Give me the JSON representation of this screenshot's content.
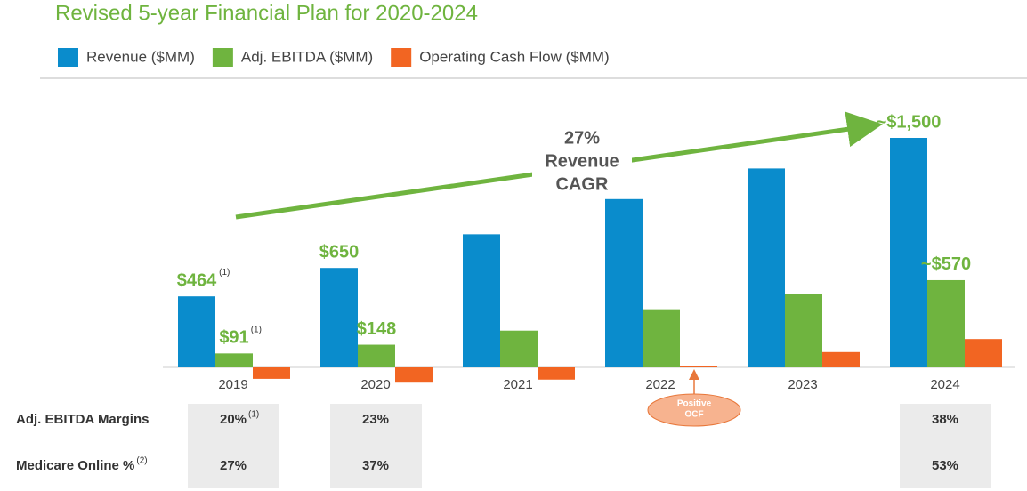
{
  "chart_data": {
    "type": "bar",
    "title": "Revised 5-year Financial Plan for 2020-2024",
    "categories": [
      "2019",
      "2020",
      "2021",
      "2022",
      "2023",
      "2024"
    ],
    "series": [
      {
        "name": "Revenue ($MM)",
        "color": "#0a8ccc",
        "values": [
          464,
          650,
          870,
          1100,
          1300,
          1500
        ],
        "value_labels": [
          "$464",
          "$650",
          null,
          null,
          null,
          "~$1,500"
        ],
        "value_notes": [
          "(1)",
          null,
          null,
          null,
          null,
          null
        ]
      },
      {
        "name": "Adj. EBITDA ($MM)",
        "color": "#6fb43f",
        "values": [
          91,
          148,
          240,
          380,
          480,
          570
        ],
        "value_labels": [
          "$91",
          "$148",
          null,
          null,
          null,
          "~$570"
        ],
        "value_notes": [
          "(1)",
          null,
          null,
          null,
          null,
          null
        ]
      },
      {
        "name": "Operating Cash Flow ($MM)",
        "color": "#f26522",
        "values": [
          -75,
          -100,
          -80,
          10,
          100,
          185
        ]
      }
    ],
    "cagr_annotation": [
      "27%",
      "Revenue",
      "CAGR"
    ],
    "ocf_callout": [
      "Positive",
      "OCF"
    ],
    "table": {
      "rows": [
        {
          "label": "Adj. EBITDA Margins",
          "label_note": null,
          "cells": [
            {
              "text": "20%",
              "note": "(1)"
            },
            {
              "text": "23%",
              "note": null
            },
            null,
            null,
            null,
            {
              "text": "38%",
              "note": null
            }
          ]
        },
        {
          "label": "Medicare Online %",
          "label_note": "(2)",
          "cells": [
            {
              "text": "27%",
              "note": null
            },
            {
              "text": "37%",
              "note": null
            },
            null,
            null,
            null,
            {
              "text": "53%",
              "note": null
            }
          ]
        }
      ]
    }
  }
}
